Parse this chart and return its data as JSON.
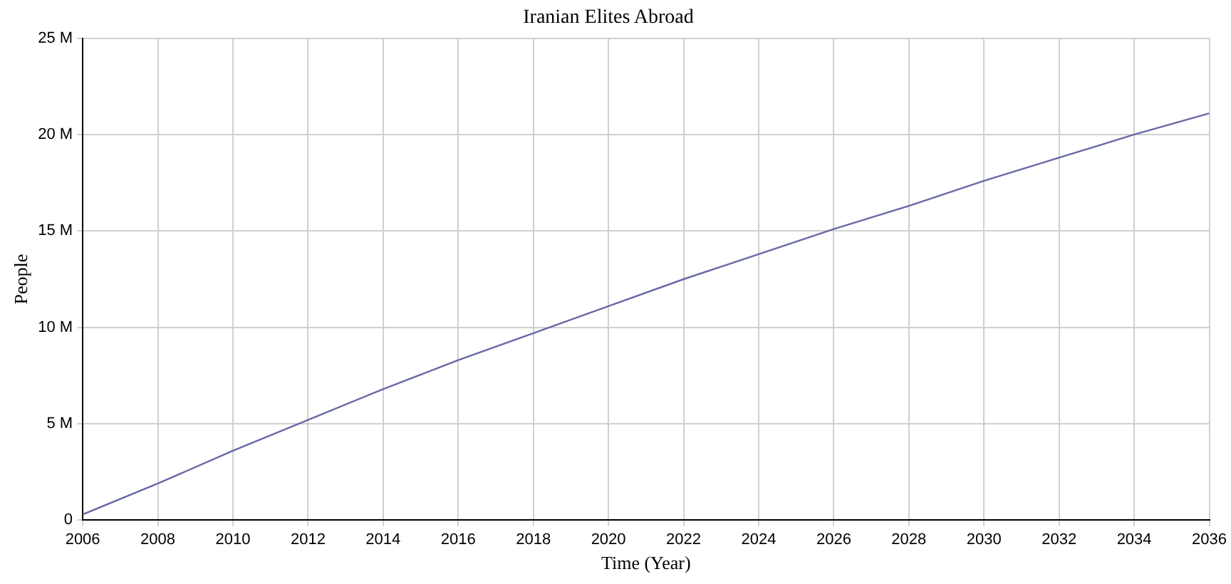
{
  "chart_data": {
    "type": "line",
    "title": "Iranian Elites Abroad",
    "xlabel": "Time (Year)",
    "ylabel": "People",
    "x": [
      2006,
      2008,
      2010,
      2012,
      2014,
      2016,
      2018,
      2020,
      2022,
      2024,
      2026,
      2028,
      2030,
      2032,
      2034,
      2036
    ],
    "series": [
      {
        "color": "#6868a8",
        "values": [
          300000,
          1900000,
          3600000,
          5200000,
          6800000,
          8300000,
          9700000,
          11100000,
          12500000,
          13800000,
          15100000,
          16300000,
          17600000,
          18800000,
          20000000,
          21100000
        ]
      }
    ],
    "xlim": [
      2006,
      2036
    ],
    "xticks": [
      2006,
      2008,
      2010,
      2012,
      2014,
      2016,
      2018,
      2020,
      2022,
      2024,
      2026,
      2028,
      2030,
      2032,
      2034,
      2036
    ],
    "ylim": [
      0,
      25000000
    ],
    "yticks": [
      0,
      {
        "value": 5000000,
        "label": "5 M"
      },
      {
        "value": 10000000,
        "label": "10 M"
      },
      {
        "value": 15000000,
        "label": "15 M"
      },
      {
        "value": 20000000,
        "label": "20 M"
      },
      {
        "value": 25000000,
        "label": "25 M"
      }
    ],
    "grid": true,
    "legend": false,
    "marker": "none",
    "line_style": "solid"
  }
}
